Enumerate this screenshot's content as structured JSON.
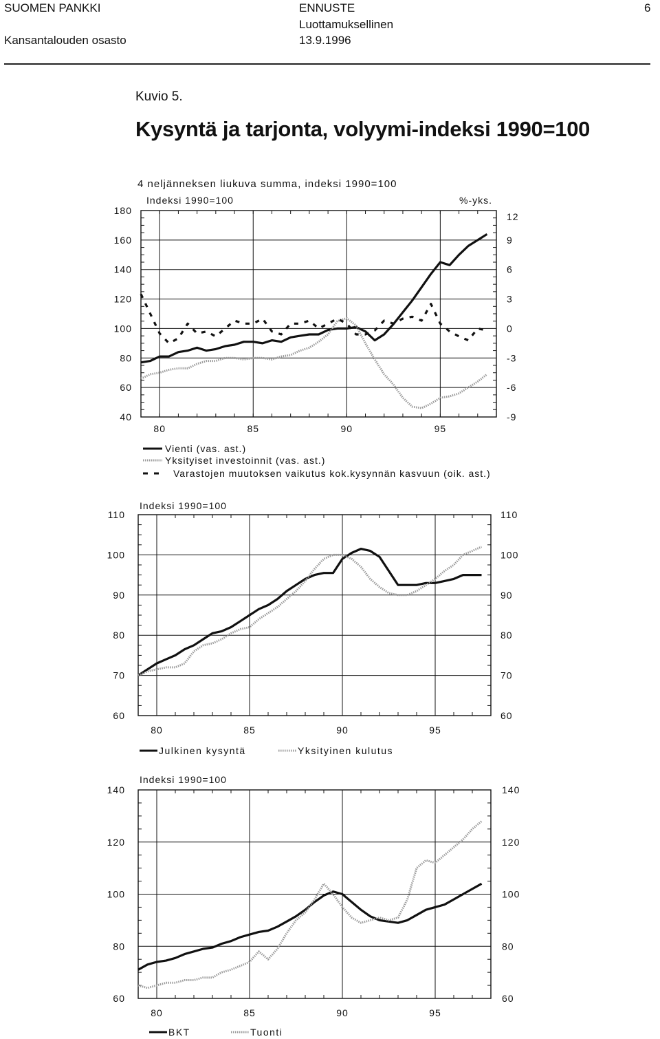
{
  "header": {
    "org": "SUOMEN PANKKI",
    "dept": "Kansantalouden osasto",
    "doc_type": "ENNUSTE",
    "classification": "Luottamuksellinen",
    "date": "13.9.1996",
    "page": "6"
  },
  "figure": {
    "label": "Kuvio 5.",
    "title": "Kysyntä ja tarjonta, volyymi-indeksi 1990=100"
  },
  "colors": {
    "solid": "#111111",
    "light": "#9a9a9a",
    "dashed": "#111111"
  },
  "chart_data": [
    {
      "type": "line",
      "title": "4 neljänneksen liukuva summa, indeksi 1990=100",
      "ylabel_left": "Indeksi 1990=100",
      "ylabel_right": "%-yks.",
      "xlim": [
        1979,
        1998
      ],
      "ylim": [
        40,
        180
      ],
      "ylim_right": [
        -9,
        12
      ],
      "x_ticks": [
        "80",
        "85",
        "90",
        "95"
      ],
      "y_ticks": [
        "40",
        "60",
        "80",
        "100",
        "120",
        "140",
        "160",
        "180"
      ],
      "y_ticks_right": [
        "-9",
        "-6",
        "-3",
        "0",
        "3",
        "6",
        "9",
        "12"
      ],
      "grid": true,
      "legend_position": "bottom",
      "series": [
        {
          "name": "Vienti (vas. ast.)",
          "style": "solid",
          "axis": "left",
          "x": [
            1979.0,
            1979.5,
            1980.0,
            1980.5,
            1981.0,
            1981.5,
            1982.0,
            1982.5,
            1983.0,
            1983.5,
            1984.0,
            1984.5,
            1985.0,
            1985.5,
            1986.0,
            1986.5,
            1987.0,
            1987.5,
            1988.0,
            1988.5,
            1989.0,
            1989.5,
            1990.0,
            1990.5,
            1991.0,
            1991.5,
            1992.0,
            1992.5,
            1993.0,
            1993.5,
            1994.0,
            1994.5,
            1995.0,
            1995.5,
            1996.0,
            1996.5,
            1997.0,
            1997.5
          ],
          "y": [
            77,
            78,
            81,
            81,
            84,
            85,
            87,
            85,
            86,
            88,
            89,
            91,
            91,
            90,
            92,
            91,
            94,
            95,
            96,
            96,
            99,
            100,
            100,
            101,
            98,
            92,
            96,
            103,
            111,
            119,
            128,
            137,
            145,
            143,
            150,
            156,
            160,
            164
          ]
        },
        {
          "name": "Yksityiset investoinnit (vas. ast.)",
          "style": "light",
          "axis": "left",
          "x": [
            1979.0,
            1979.5,
            1980.0,
            1980.5,
            1981.0,
            1981.5,
            1982.0,
            1982.5,
            1983.0,
            1983.5,
            1984.0,
            1984.5,
            1985.0,
            1985.5,
            1986.0,
            1986.5,
            1987.0,
            1987.5,
            1988.0,
            1988.5,
            1989.0,
            1989.5,
            1990.0,
            1990.5,
            1991.0,
            1991.5,
            1992.0,
            1992.5,
            1993.0,
            1993.5,
            1994.0,
            1994.5,
            1995.0,
            1995.5,
            1996.0,
            1996.5,
            1997.0,
            1997.5
          ],
          "y": [
            66,
            69,
            70,
            72,
            73,
            73,
            76,
            78,
            78,
            80,
            80,
            79,
            80,
            80,
            79,
            81,
            82,
            85,
            87,
            91,
            96,
            105,
            107,
            102,
            90,
            79,
            69,
            62,
            53,
            47,
            46,
            49,
            53,
            54,
            56,
            60,
            64,
            69
          ]
        },
        {
          "name": "Varastojen muutoksen vaikutus kok.kysynnän kasvuun (oik. ast.)",
          "style": "dashed",
          "axis": "right",
          "x": [
            1979.0,
            1979.5,
            1980.0,
            1980.5,
            1981.0,
            1981.5,
            1982.0,
            1982.5,
            1983.0,
            1983.5,
            1984.0,
            1984.5,
            1985.0,
            1985.5,
            1986.0,
            1986.5,
            1987.0,
            1987.5,
            1988.0,
            1988.5,
            1989.0,
            1989.5,
            1990.0,
            1990.5,
            1991.0,
            1991.5,
            1992.0,
            1992.5,
            1993.0,
            1993.5,
            1994.0,
            1994.5,
            1995.0,
            1995.5,
            1996.0,
            1996.5,
            1997.0,
            1997.5
          ],
          "y": [
            3.5,
            1.5,
            -0.5,
            -1.5,
            -1.0,
            0.5,
            -0.5,
            -0.3,
            -0.8,
            0.0,
            0.8,
            0.5,
            0.5,
            1.0,
            -0.3,
            -0.6,
            0.5,
            0.5,
            0.8,
            0.0,
            0.5,
            1.0,
            0.5,
            -0.6,
            -0.6,
            -0.2,
            0.8,
            0.5,
            1.0,
            1.2,
            0.8,
            2.5,
            0.5,
            -0.3,
            -0.8,
            -1.2,
            0.0,
            -0.2
          ]
        }
      ]
    },
    {
      "type": "line",
      "ylabel_left": "Indeksi 1990=100",
      "xlim": [
        1979,
        1998
      ],
      "ylim": [
        60,
        110
      ],
      "x_ticks": [
        "80",
        "85",
        "90",
        "95"
      ],
      "y_ticks": [
        "60",
        "70",
        "80",
        "90",
        "100",
        "110"
      ],
      "grid": true,
      "legend_position": "bottom",
      "series": [
        {
          "name": "Julkinen kysyntä",
          "style": "solid",
          "x": [
            1979.0,
            1979.5,
            1980.0,
            1980.5,
            1981.0,
            1981.5,
            1982.0,
            1982.5,
            1983.0,
            1983.5,
            1984.0,
            1984.5,
            1985.0,
            1985.5,
            1986.0,
            1986.5,
            1987.0,
            1987.5,
            1988.0,
            1988.5,
            1989.0,
            1989.5,
            1990.0,
            1990.5,
            1991.0,
            1991.5,
            1992.0,
            1992.5,
            1993.0,
            1993.5,
            1994.0,
            1994.5,
            1995.0,
            1995.5,
            1996.0,
            1996.5,
            1997.0,
            1997.5
          ],
          "y": [
            70,
            71.5,
            73,
            74,
            75,
            76.5,
            77.5,
            79,
            80.5,
            81,
            82,
            83.5,
            85,
            86.5,
            87.5,
            89,
            91,
            92.5,
            94,
            95,
            95.5,
            95.5,
            99,
            100.5,
            101.5,
            101,
            99.5,
            96,
            92.5,
            92.5,
            92.5,
            93,
            93,
            93.5,
            94,
            95,
            95,
            95
          ]
        },
        {
          "name": "Yksityinen kulutus",
          "style": "light",
          "x": [
            1979.0,
            1979.5,
            1980.0,
            1980.5,
            1981.0,
            1981.5,
            1982.0,
            1982.5,
            1983.0,
            1983.5,
            1984.0,
            1984.5,
            1985.0,
            1985.5,
            1986.0,
            1986.5,
            1987.0,
            1987.5,
            1988.0,
            1988.5,
            1989.0,
            1989.5,
            1990.0,
            1990.5,
            1991.0,
            1991.5,
            1992.0,
            1992.5,
            1993.0,
            1993.5,
            1994.0,
            1994.5,
            1995.0,
            1995.5,
            1996.0,
            1996.5,
            1997.0,
            1997.5
          ],
          "y": [
            70,
            71,
            71.5,
            72,
            72,
            73,
            76,
            77.5,
            78,
            79,
            80.5,
            81.5,
            82,
            84,
            85.5,
            87,
            89,
            91,
            93.5,
            96.5,
            99,
            100,
            100,
            99,
            97,
            94,
            92,
            90.5,
            90,
            90,
            91,
            92.5,
            94,
            96,
            97.5,
            100,
            101,
            102
          ]
        }
      ]
    },
    {
      "type": "line",
      "ylabel_left": "Indeksi 1990=100",
      "xlim": [
        1979,
        1998
      ],
      "ylim": [
        60,
        140
      ],
      "x_ticks": [
        "80",
        "85",
        "90",
        "95"
      ],
      "y_ticks": [
        "60",
        "80",
        "100",
        "120",
        "140"
      ],
      "grid": true,
      "legend_position": "bottom",
      "series": [
        {
          "name": "BKT",
          "style": "solid",
          "x": [
            1979.0,
            1979.5,
            1980.0,
            1980.5,
            1981.0,
            1981.5,
            1982.0,
            1982.5,
            1983.0,
            1983.5,
            1984.0,
            1984.5,
            1985.0,
            1985.5,
            1986.0,
            1986.5,
            1987.0,
            1987.5,
            1988.0,
            1988.5,
            1989.0,
            1989.5,
            1990.0,
            1990.5,
            1991.0,
            1991.5,
            1992.0,
            1992.5,
            1993.0,
            1993.5,
            1994.0,
            1994.5,
            1995.0,
            1995.5,
            1996.0,
            1996.5,
            1997.0,
            1997.5
          ],
          "y": [
            71,
            73,
            74,
            74.5,
            75.5,
            77,
            78,
            79,
            79.5,
            81,
            82,
            83.5,
            84.5,
            85.5,
            86,
            87.5,
            89.5,
            91.5,
            94,
            97,
            99.5,
            101,
            100,
            97,
            94,
            91.5,
            90,
            89.5,
            89,
            90,
            92,
            94,
            95,
            96,
            98,
            100,
            102,
            104
          ]
        },
        {
          "name": "Tuonti",
          "style": "light",
          "x": [
            1979.0,
            1979.5,
            1980.0,
            1980.5,
            1981.0,
            1981.5,
            1982.0,
            1982.5,
            1983.0,
            1983.5,
            1984.0,
            1984.5,
            1985.0,
            1985.5,
            1986.0,
            1986.5,
            1987.0,
            1987.5,
            1988.0,
            1988.5,
            1989.0,
            1989.5,
            1990.0,
            1990.5,
            1991.0,
            1991.5,
            1992.0,
            1992.5,
            1993.0,
            1993.5,
            1994.0,
            1994.5,
            1995.0,
            1995.5,
            1996.0,
            1996.5,
            1997.0,
            1997.5
          ],
          "y": [
            65,
            64,
            65,
            66,
            66,
            67,
            67,
            68,
            68,
            70,
            71,
            72.5,
            74,
            78,
            75,
            79,
            85,
            90,
            93,
            98,
            104,
            100,
            95,
            91,
            89,
            90,
            91,
            90,
            91,
            98,
            110,
            113,
            112,
            115,
            118,
            121,
            125,
            128
          ]
        }
      ]
    }
  ]
}
